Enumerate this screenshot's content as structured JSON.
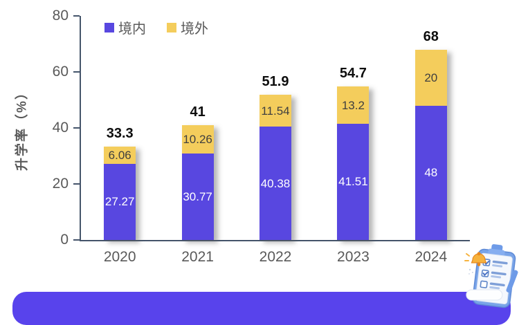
{
  "chart_data": {
    "type": "bar",
    "stacked": true,
    "title": "",
    "ylabel": "升学率（%）",
    "ylim": [
      0,
      80
    ],
    "yticks": [
      0,
      20,
      40,
      60,
      80
    ],
    "categories": [
      "2020",
      "2021",
      "2022",
      "2023",
      "2024"
    ],
    "series": [
      {
        "name": "境内",
        "color": "#5847E0",
        "label_color": "#FFFFFF",
        "values": [
          27.27,
          30.77,
          40.38,
          41.51,
          48
        ]
      },
      {
        "name": "境外",
        "color": "#F4CD5C",
        "label_color": "#3F3F3F",
        "values": [
          6.06,
          10.26,
          11.54,
          13.2,
          20
        ]
      }
    ],
    "totals": [
      "33.3",
      "41",
      "51.9",
      "54.7",
      "68"
    ],
    "legend": {
      "position": "top-left",
      "items": [
        "境内",
        "境外"
      ]
    },
    "grid": false
  },
  "colors": {
    "axis": "#44546A",
    "tick_label": "#595959",
    "banner": "#5843EC"
  },
  "decor": {
    "banner": "bottom-rounded-purple-banner",
    "icon": "clipboard-checklist-bell-icon"
  }
}
